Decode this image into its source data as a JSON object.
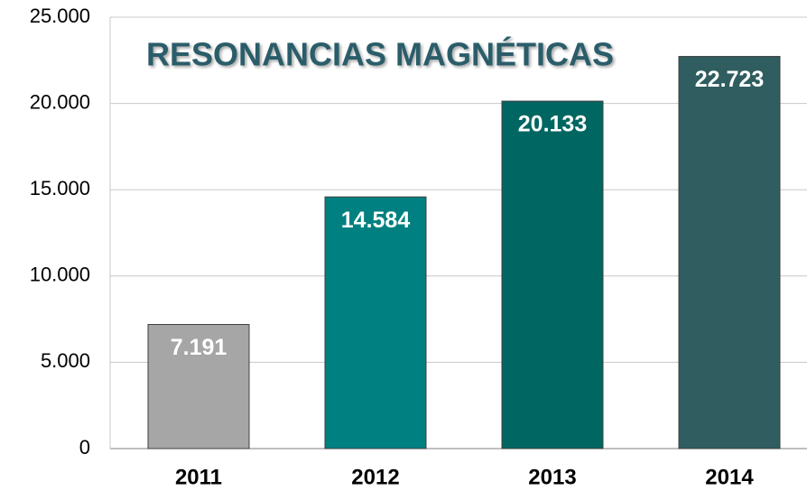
{
  "chart_data": {
    "type": "bar",
    "title": "RESONANCIAS MAGNÉTICAS",
    "categories": [
      "2011",
      "2012",
      "2013",
      "2014"
    ],
    "values": [
      7191,
      14584,
      20133,
      22723
    ],
    "value_labels": [
      "7.191",
      "14.584",
      "20.133",
      "22.723"
    ],
    "colors": [
      "#a6a6a6",
      "#008080",
      "#006661",
      "#2f5d60"
    ],
    "ylim": [
      0,
      25000
    ],
    "yticks": [
      0,
      {
        "value": 5000,
        "label": "5.000"
      },
      {
        "value": 10000,
        "label": "10.000"
      },
      {
        "value": 15000,
        "label": "15.000"
      },
      {
        "value": 20000,
        "label": "20.000"
      },
      {
        "value": 25000,
        "label": "25.000"
      }
    ],
    "grid": true
  }
}
